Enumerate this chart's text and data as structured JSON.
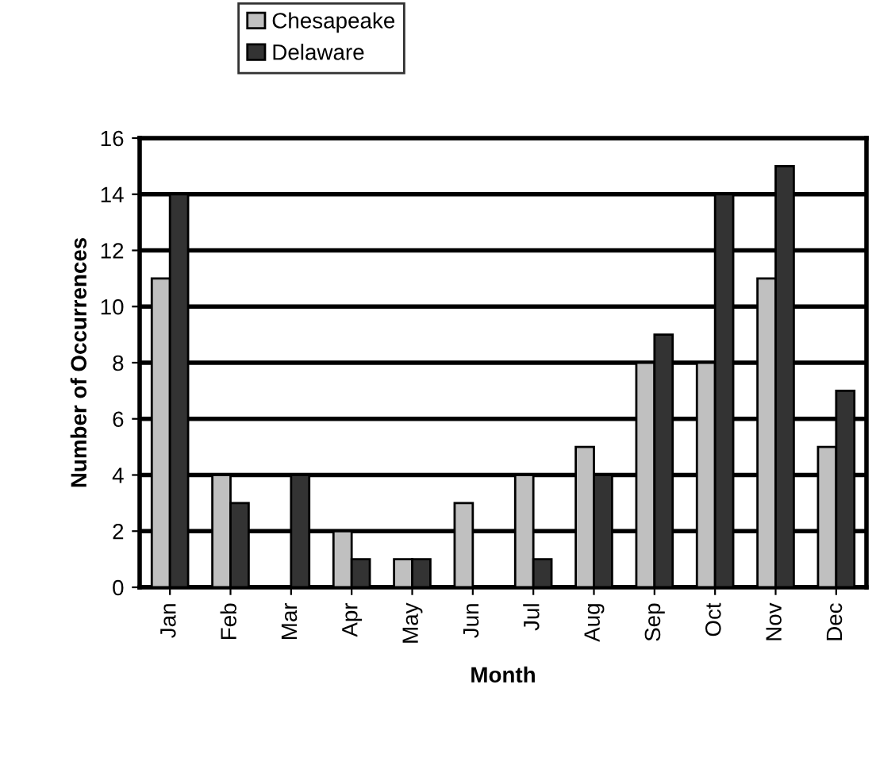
{
  "chart_data": {
    "type": "bar",
    "xlabel": "Month",
    "ylabel": "Number of Occurrences",
    "categories": [
      "Jan",
      "Feb",
      "Mar",
      "Apr",
      "May",
      "Jun",
      "Jul",
      "Aug",
      "Sep",
      "Oct",
      "Nov",
      "Dec"
    ],
    "series": [
      {
        "name": "Chesapeake",
        "color": "#c0c0c0",
        "values": [
          11,
          4,
          0,
          2,
          1,
          3,
          4,
          5,
          8,
          8,
          11,
          5
        ]
      },
      {
        "name": "Delaware",
        "color": "#333333",
        "values": [
          14,
          3,
          4,
          1,
          1,
          0,
          1,
          4,
          9,
          14,
          15,
          7
        ]
      }
    ],
    "ylim": [
      0,
      16
    ],
    "yticks": [
      0,
      2,
      4,
      6,
      8,
      10,
      12,
      14,
      16
    ],
    "grid": "y",
    "legend": "top"
  }
}
